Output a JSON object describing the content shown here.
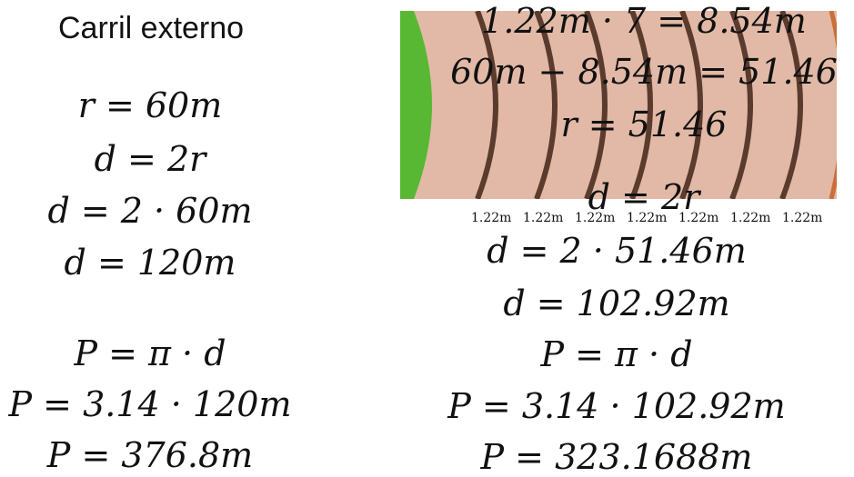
{
  "title": "Carril externo",
  "left": {
    "eq1": "r = 60m",
    "eq2": "d = 2r",
    "eq3": "d = 2 · 60m",
    "eq4": "d = 120m",
    "eq5": "P = π · d",
    "eq6": "P = 3.14 · 120m",
    "eq7": "P = 376.8m"
  },
  "right": {
    "eq1": "1.22m · 7 = 8.54m",
    "eq2": "60m − 8.54m = 51.46",
    "eq3": "r = 51.46",
    "eq4": "d = 2r",
    "eq5": "d = 2 · 51.46m",
    "eq6": "d = 102.92m",
    "eq7": "P = π · d",
    "eq8": "P = 3.14 · 102.92m",
    "eq9": "P = 323.1688m"
  },
  "lane_labels": [
    "1.22m",
    "1.22m",
    "1.22m",
    "1.22m",
    "1.22m",
    "1.22m",
    "1.22m"
  ],
  "colors": {
    "track": "#e2b9a6",
    "field": "#58b833",
    "lane_line": "#5a3b2e",
    "outer_edge": "#c8703a"
  }
}
